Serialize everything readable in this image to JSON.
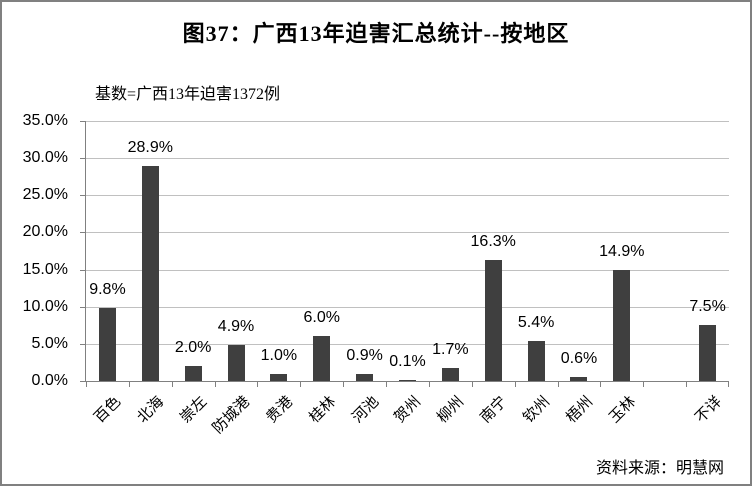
{
  "title": "图37：广西13年迫害汇总统计--按地区",
  "subtitle": "基数=广西13年迫害1372例",
  "source": "资料来源：明慧网",
  "colors": {
    "bar": "#3f3f3f",
    "gridline": "#c0c0c0",
    "axis": "#808080",
    "frame": "#808080",
    "background": "#ffffff",
    "text": "#000000"
  },
  "chart_data": {
    "type": "bar",
    "title": "图37：广西13年迫害汇总统计--按地区",
    "subtitle": "基数=广西13年迫害1372例",
    "categories": [
      "百色",
      "北海",
      "崇左",
      "防城港",
      "贵港",
      "桂林",
      "河池",
      "贺州",
      "柳州",
      "南宁",
      "钦州",
      "梧州",
      "玉林",
      "",
      "不详"
    ],
    "values": [
      9.8,
      28.9,
      2.0,
      4.9,
      1.0,
      6.0,
      0.9,
      0.1,
      1.7,
      16.3,
      5.4,
      0.6,
      14.9,
      null,
      7.5
    ],
    "data_labels": [
      "9.8%",
      "28.9%",
      "2.0%",
      "4.9%",
      "1.0%",
      "6.0%",
      "0.9%",
      "0.1%",
      "1.7%",
      "16.3%",
      "5.4%",
      "0.6%",
      "14.9%",
      "",
      "7.5%"
    ],
    "xlabel": "",
    "ylabel": "",
    "ylim": [
      0,
      35
    ],
    "ytick_step": 5,
    "ytick_labels": [
      "35.0%",
      "30.0%",
      "25.0%",
      "20.0%",
      "15.0%",
      "10.0%",
      "5.0%",
      "0.0%"
    ],
    "grid": true,
    "legend": false,
    "bar_color": "#3f3f3f",
    "source": "资料来源：明慧网"
  }
}
